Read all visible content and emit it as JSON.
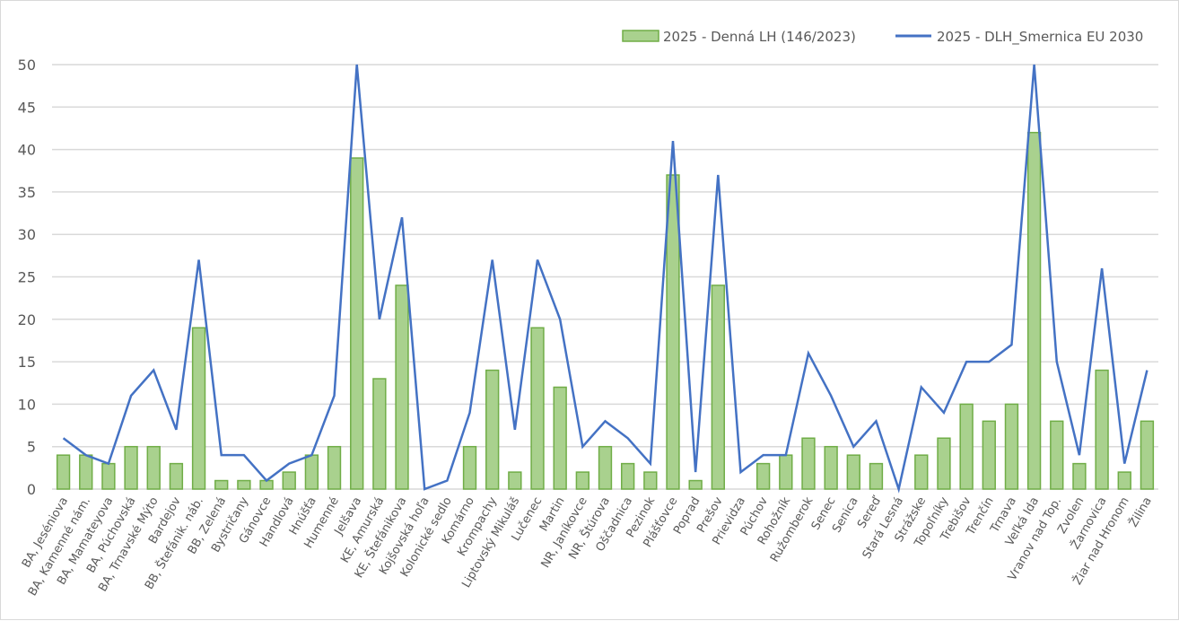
{
  "chart_data": {
    "type": "bar+line",
    "title": "",
    "xlabel": "",
    "ylabel": "",
    "ylim": [
      0,
      50
    ],
    "yticks": [
      0,
      5,
      10,
      15,
      20,
      25,
      30,
      35,
      40,
      45,
      50
    ],
    "grid": true,
    "legend_position": "top-right",
    "categories": [
      "BA, Jeséniova",
      "BA, Kamenné nám.",
      "BA, Mamateyova",
      "BA, Púchovská",
      "BA, Trnavské Mýto",
      "Bardejov",
      "BB, Štefánik. náb.",
      "BB, Zelená",
      "Bystričany",
      "Gánovce",
      "Handlová",
      "Hnúšťa",
      "Humenné",
      "Jelšava",
      "KE, Amurská",
      "KE, Štefánikova",
      "Kojšovská hoľa",
      "Kolonické sedlo",
      "Komárno",
      "Krompachy",
      "Liptovský Mikuláš",
      "Lučenec",
      "Martin",
      "NR, Janíkovce",
      "NR, Štúrova",
      "Oščadnica",
      "Pezinok",
      "Plášťovce",
      "Poprad",
      "Prešov",
      "Prievidza",
      "Púchov",
      "Rohožník",
      "Ružomberok",
      "Senec",
      "Senica",
      "Sereď",
      "Stará Lesná",
      "Strážske",
      "Topoľníky",
      "Trebišov",
      "Trenčín",
      "Trnava",
      "Veľká Ida",
      "Vranov nad Top.",
      "Zvolen",
      "Žarnovica",
      "Žiar nad Hronom",
      "Žilina"
    ],
    "series": [
      {
        "name": "2025 - Denná LH (146/2023)",
        "type": "bar",
        "color": "#a9d18e",
        "border": "#70ad47",
        "values": [
          4,
          4,
          3,
          5,
          5,
          3,
          19,
          1,
          1,
          1,
          2,
          4,
          5,
          39,
          13,
          24,
          null,
          null,
          5,
          14,
          2,
          19,
          12,
          2,
          5,
          3,
          2,
          37,
          1,
          24,
          null,
          3,
          4,
          6,
          5,
          4,
          3,
          null,
          4,
          6,
          10,
          8,
          10,
          42,
          8,
          3,
          14,
          2,
          8
        ]
      },
      {
        "name": "2025 - DLH_Smernica EU 2030",
        "type": "line",
        "color": "#4472c4",
        "values": [
          6,
          4,
          3,
          11,
          14,
          7,
          27,
          4,
          4,
          1,
          3,
          4,
          11,
          50,
          20,
          32,
          0,
          1,
          9,
          27,
          7,
          27,
          20,
          5,
          8,
          6,
          3,
          41,
          2,
          37,
          2,
          4,
          4,
          16,
          11,
          5,
          8,
          0,
          12,
          9,
          15,
          15,
          17,
          50,
          15,
          4,
          26,
          3,
          14
        ]
      }
    ]
  }
}
